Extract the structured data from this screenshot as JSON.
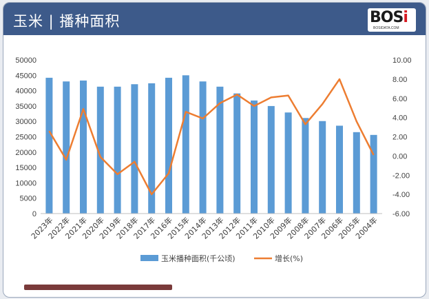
{
  "header": {
    "title": "玉米 | 播种面积",
    "logo_text": "BOSi",
    "logo_sub": "BOSIDATA.COM"
  },
  "colors": {
    "header_bg": "#3d5a8a",
    "bar": "#5b9bd5",
    "line": "#ed7d31"
  },
  "chart_data": {
    "type": "bar",
    "categories": [
      "2023年",
      "2022年",
      "2021年",
      "2020年",
      "2019年",
      "2018年",
      "2017年",
      "2016年",
      "2015年",
      "2014年",
      "2013年",
      "2012年",
      "2011年",
      "2010年",
      "2009年",
      "2008年",
      "2007年",
      "2006年",
      "2005年",
      "2004年"
    ],
    "series": [
      {
        "name": "玉米播种面积(千公顷)",
        "type": "bar",
        "axis": "left",
        "values": [
          44200,
          43000,
          43300,
          41300,
          41300,
          42100,
          42400,
          44200,
          45000,
          43000,
          41300,
          39100,
          36800,
          35000,
          32900,
          31100,
          30100,
          28600,
          26500,
          25600
        ]
      },
      {
        "name": "增长(%)",
        "type": "line",
        "axis": "right",
        "values": [
          2.6,
          -0.4,
          4.9,
          -0.1,
          -1.9,
          -0.6,
          -4.0,
          -1.8,
          4.6,
          3.9,
          5.5,
          6.4,
          5.2,
          6.1,
          6.3,
          3.3,
          5.4,
          8.0,
          3.6,
          0.1
        ]
      }
    ],
    "ylim_left": [
      0,
      50000
    ],
    "yticks_left": [
      "0",
      "5000",
      "10000",
      "15000",
      "20000",
      "25000",
      "30000",
      "35000",
      "40000",
      "45000",
      "50000"
    ],
    "ylim_right": [
      -6,
      10
    ],
    "yticks_right": [
      "-6.00",
      "-4.00",
      "-2.00",
      "0.00",
      "2.00",
      "4.00",
      "6.00",
      "8.00",
      "10.00"
    ],
    "legend_position": "bottom",
    "grid": false
  }
}
